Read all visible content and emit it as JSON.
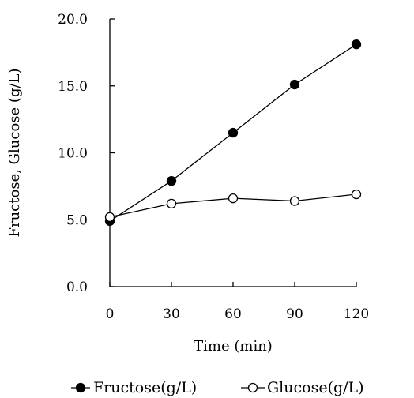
{
  "chart_data": {
    "type": "line",
    "title": "",
    "xlabel": "Time (min)",
    "ylabel": "Fructose, Glucose (g/L)",
    "x": [
      0,
      30,
      60,
      90,
      120
    ],
    "x_ticks": [
      "0",
      "30",
      "60",
      "90",
      "120"
    ],
    "y_ticks": [
      "0.0",
      "5.0",
      "10.0",
      "15.0",
      "20.0"
    ],
    "xlim": [
      0,
      120
    ],
    "ylim": [
      0,
      20
    ],
    "grid": false,
    "legend_position": "bottom",
    "series": [
      {
        "name": "Fructose(g/L)",
        "values": [
          4.9,
          7.9,
          11.5,
          15.1,
          18.1
        ],
        "marker": "filled-circle",
        "color": "#000000"
      },
      {
        "name": "Glucose(g/L)",
        "values": [
          5.2,
          6.2,
          6.6,
          6.4,
          6.9
        ],
        "marker": "open-circle",
        "color": "#000000"
      }
    ]
  }
}
